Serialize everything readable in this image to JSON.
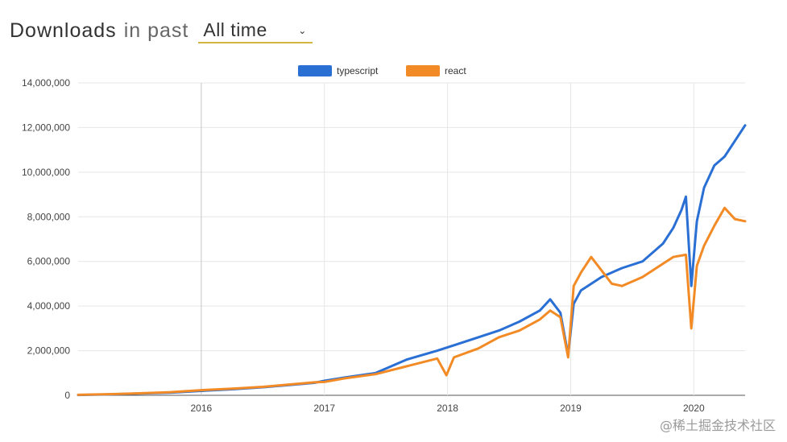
{
  "header": {
    "title_main": "Downloads",
    "title_sub": "in past",
    "period_selected": "All time"
  },
  "watermark": "@稀土掘金技术社区",
  "colors": {
    "typescript": "#2a6fd4",
    "react": "#f28a26",
    "grid": "#e6e6e6",
    "axis": "#555555"
  },
  "chart_data": {
    "type": "line",
    "legend": {
      "position": "top-center",
      "entries": [
        "typescript",
        "react"
      ]
    },
    "xlim": [
      "2015-01",
      "2020-06"
    ],
    "ylim": [
      0,
      14000000
    ],
    "grid": true,
    "y_ticks": [
      "0",
      "2,000,000",
      "4,000,000",
      "6,000,000",
      "8,000,000",
      "10,000,000",
      "12,000,000",
      "14,000,000"
    ],
    "x_ticks": [
      "2016",
      "2017",
      "2018",
      "2019",
      "2020"
    ],
    "series": [
      {
        "name": "typescript",
        "color": "#2a6fd4",
        "points": [
          [
            "2015-01",
            15000
          ],
          [
            "2015-04",
            40000
          ],
          [
            "2015-07",
            80000
          ],
          [
            "2015-10",
            120000
          ],
          [
            "2016-01",
            200000
          ],
          [
            "2016-04",
            270000
          ],
          [
            "2016-07",
            360000
          ],
          [
            "2016-10",
            480000
          ],
          [
            "2016-12",
            560000
          ],
          [
            "2017-01",
            650000
          ],
          [
            "2017-03",
            800000
          ],
          [
            "2017-06",
            1000000
          ],
          [
            "2017-09",
            1600000
          ],
          [
            "2017-12",
            2000000
          ],
          [
            "2018-02",
            2300000
          ],
          [
            "2018-04",
            2600000
          ],
          [
            "2018-06",
            2900000
          ],
          [
            "2018-08",
            3300000
          ],
          [
            "2018-10",
            3800000
          ],
          [
            "2018-11",
            4300000
          ],
          [
            "2018-12",
            3700000
          ],
          [
            "2018-12-24",
            1800000
          ],
          [
            "2019-01-10",
            4100000
          ],
          [
            "2019-02",
            4700000
          ],
          [
            "2019-04",
            5300000
          ],
          [
            "2019-06",
            5700000
          ],
          [
            "2019-08",
            6000000
          ],
          [
            "2019-10",
            6800000
          ],
          [
            "2019-11",
            7500000
          ],
          [
            "2019-11-25",
            8300000
          ],
          [
            "2019-12-08",
            8900000
          ],
          [
            "2019-12-24",
            4900000
          ],
          [
            "2020-01-10",
            7800000
          ],
          [
            "2020-02",
            9300000
          ],
          [
            "2020-03",
            10300000
          ],
          [
            "2020-04",
            10700000
          ],
          [
            "2020-05",
            11400000
          ],
          [
            "2020-06",
            12100000
          ]
        ]
      },
      {
        "name": "react",
        "color": "#f28a26",
        "points": [
          [
            "2015-01",
            20000
          ],
          [
            "2015-04",
            50000
          ],
          [
            "2015-07",
            90000
          ],
          [
            "2015-10",
            140000
          ],
          [
            "2016-01",
            230000
          ],
          [
            "2016-04",
            300000
          ],
          [
            "2016-07",
            380000
          ],
          [
            "2016-10",
            500000
          ],
          [
            "2016-12",
            580000
          ],
          [
            "2017-01",
            600000
          ],
          [
            "2017-03",
            760000
          ],
          [
            "2017-06",
            950000
          ],
          [
            "2017-09",
            1300000
          ],
          [
            "2017-12",
            1650000
          ],
          [
            "2017-12-28",
            900000
          ],
          [
            "2018-01-20",
            1700000
          ],
          [
            "2018-04",
            2100000
          ],
          [
            "2018-06",
            2600000
          ],
          [
            "2018-08",
            2900000
          ],
          [
            "2018-10",
            3400000
          ],
          [
            "2018-11",
            3800000
          ],
          [
            "2018-12",
            3500000
          ],
          [
            "2018-12-24",
            1700000
          ],
          [
            "2019-01-10",
            4900000
          ],
          [
            "2019-02",
            5500000
          ],
          [
            "2019-03",
            6200000
          ],
          [
            "2019-04",
            5600000
          ],
          [
            "2019-05",
            5000000
          ],
          [
            "2019-06",
            4900000
          ],
          [
            "2019-08",
            5300000
          ],
          [
            "2019-10",
            5900000
          ],
          [
            "2019-11",
            6200000
          ],
          [
            "2019-12-08",
            6300000
          ],
          [
            "2019-12-24",
            3000000
          ],
          [
            "2020-01-10",
            5800000
          ],
          [
            "2020-02",
            6700000
          ],
          [
            "2020-03",
            7600000
          ],
          [
            "2020-04",
            8400000
          ],
          [
            "2020-05",
            7900000
          ],
          [
            "2020-06",
            7800000
          ]
        ]
      }
    ]
  }
}
